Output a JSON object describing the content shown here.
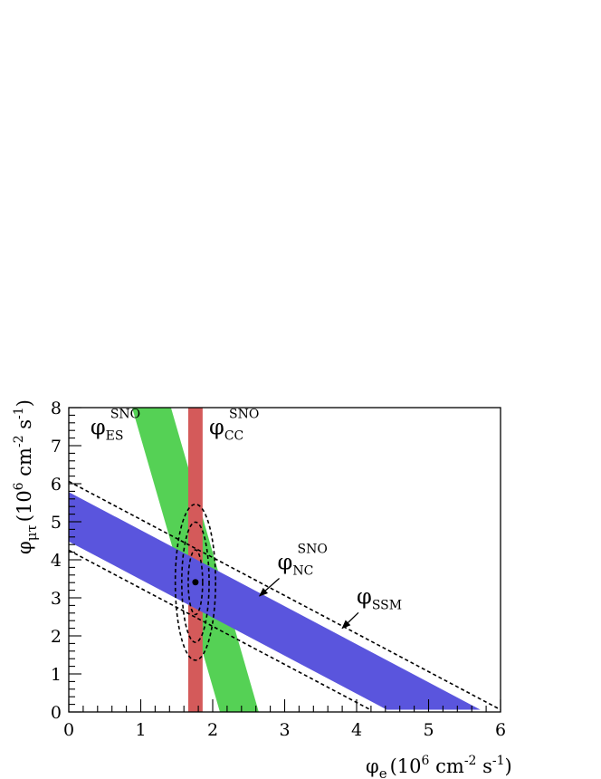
{
  "chart_data": {
    "type": "band",
    "xlabel": {
      "symbol": "φ",
      "sub": "e",
      "text": "(10",
      "exp1": "6",
      "mid": " cm",
      "exp2": "-2",
      "mid2": " s",
      "exp3": "-1",
      "end": ")"
    },
    "ylabel": {
      "symbol": "φ",
      "sub": "μτ",
      "text": "(10",
      "exp1": "6",
      "mid": " cm",
      "exp2": "-2",
      "mid2": " s",
      "exp3": "-1",
      "end": ")"
    },
    "xlim": [
      0,
      6
    ],
    "ylim": [
      0,
      8
    ],
    "x_ticks": [
      "0",
      "1",
      "2",
      "3",
      "4",
      "5",
      "6"
    ],
    "y_ticks": [
      "0",
      "1",
      "2",
      "3",
      "4",
      "5",
      "6",
      "7",
      "8"
    ],
    "bands": [
      {
        "id": "es",
        "color": "#55d155",
        "polygon": [
          [
            0.88,
            8.0
          ],
          [
            1.42,
            8.0
          ],
          [
            2.64,
            0.0
          ],
          [
            2.1,
            0.0
          ]
        ]
      },
      {
        "id": "cc",
        "color": "#d45a5a",
        "polygon": [
          [
            1.66,
            0.0
          ],
          [
            1.86,
            0.0
          ],
          [
            1.86,
            8.0
          ],
          [
            1.66,
            8.0
          ]
        ]
      },
      {
        "id": "nc",
        "color": "#5a55dd",
        "polygon": [
          [
            0.0,
            4.48
          ],
          [
            0.0,
            5.78
          ],
          [
            5.72,
            0.06
          ],
          [
            4.42,
            0.06
          ]
        ]
      }
    ],
    "ssm_lines": [
      {
        "x": [
          0.0,
          6.0
        ],
        "y": [
          6.06,
          0.06
        ]
      },
      {
        "x": [
          0.0,
          4.2
        ],
        "y": [
          4.25,
          0.05
        ]
      }
    ],
    "ellipses": [
      {
        "cx": 1.76,
        "cy": 3.41,
        "rx": 0.1,
        "ry": 0.85
      },
      {
        "cx": 1.76,
        "cy": 3.41,
        "rx": 0.19,
        "ry": 1.58
      },
      {
        "cx": 1.76,
        "cy": 3.41,
        "rx": 0.28,
        "ry": 2.05
      }
    ],
    "best_fit": {
      "x": 1.76,
      "y": 3.41
    },
    "annotations": [
      {
        "id": "es",
        "main": "φ",
        "sub": "ES",
        "sup": "SNO",
        "x": 0.3,
        "y": 7.3
      },
      {
        "id": "cc",
        "main": "φ",
        "sub": "CC",
        "sup": "SNO",
        "x": 1.95,
        "y": 7.3
      },
      {
        "id": "nc",
        "main": "φ",
        "sub": "NC",
        "sup": "SNO",
        "x": 2.9,
        "y": 3.75,
        "arrow_to": [
          2.65,
          3.05
        ]
      },
      {
        "id": "ssm",
        "main": "φ",
        "sub": "SSM",
        "sup": "",
        "x": 4.0,
        "y": 2.85,
        "arrow_to": [
          3.8,
          2.2
        ]
      }
    ]
  }
}
